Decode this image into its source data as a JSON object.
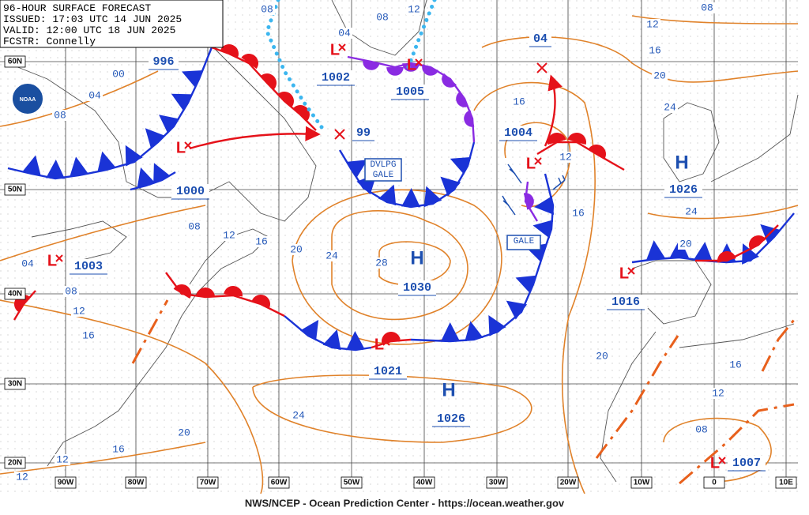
{
  "header": {
    "title": "96-HOUR SURFACE FORECAST",
    "issued": "ISSUED: 17:03 UTC 14 JUN 2025",
    "valid": "VALID:  12:00 UTC 18 JUN 2025",
    "forecaster": "FCSTR:  Connelly"
  },
  "logo": "NOAA",
  "latitude_labels": [
    "60N",
    "50N",
    "40N",
    "30N",
    "20N"
  ],
  "longitude_labels": [
    "90W",
    "80W",
    "70W",
    "60W",
    "50W",
    "40W",
    "30W",
    "20W",
    "10W",
    "0",
    "10E"
  ],
  "pressure_systems": [
    {
      "symbol": "L",
      "pressure": "1000"
    },
    {
      "pressure": "996"
    },
    {
      "symbol": "L",
      "pressure": "1002"
    },
    {
      "symbol": "L",
      "pressure": "1005"
    },
    {
      "pressure": "04"
    },
    {
      "pressure": "99"
    },
    {
      "symbol": "L",
      "pressure": "1004"
    },
    {
      "symbol": "L",
      "pressure": "1003"
    },
    {
      "symbol": "H",
      "pressure": "1030"
    },
    {
      "symbol": "H",
      "pressure": "1026"
    },
    {
      "symbol": "L",
      "pressure": "1021"
    },
    {
      "symbol": "H",
      "pressure": "1026"
    },
    {
      "symbol": "L",
      "pressure": "1016"
    },
    {
      "symbol": "L",
      "pressure": "1007"
    }
  ],
  "isobar_labels": [
    "08",
    "08",
    "12",
    "08",
    "12",
    "16",
    "20",
    "24",
    "04",
    "00",
    "04",
    "08",
    "16",
    "12",
    "16",
    "24",
    "20",
    "08",
    "12",
    "16",
    "20",
    "24",
    "28",
    "04",
    "08",
    "12",
    "16",
    "20",
    "16",
    "12",
    "08",
    "24",
    "20",
    "16",
    "12",
    "12"
  ],
  "warnings": [
    "DVLPG GALE",
    "GALE"
  ],
  "footer": "NWS/NCEP - Ocean Prediction Center - https://ocean.weather.gov"
}
